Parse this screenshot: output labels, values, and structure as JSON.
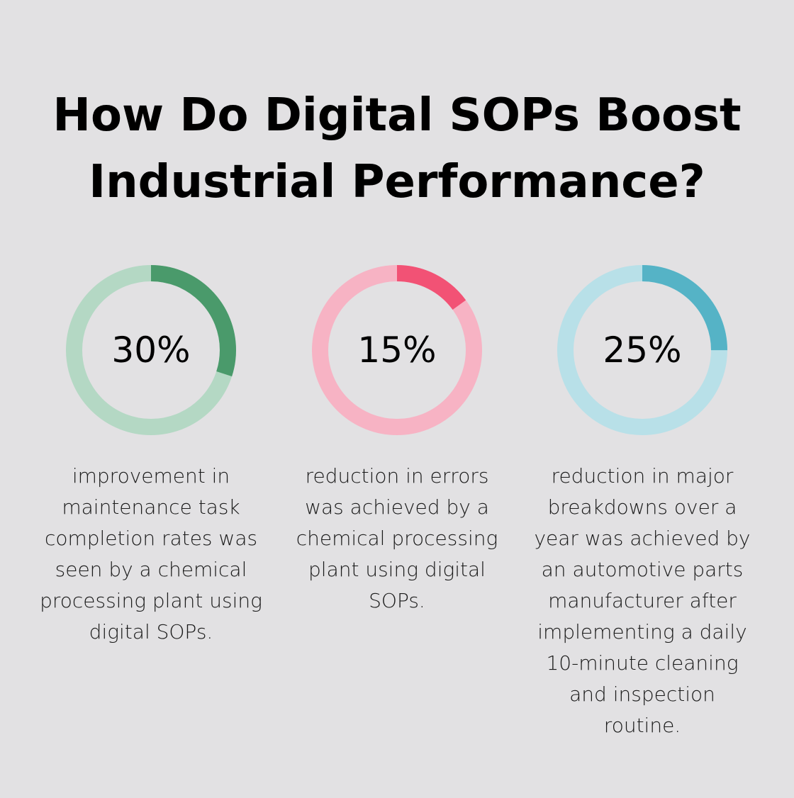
{
  "title": {
    "line1": "How Do Digital SOPs Boost",
    "line2": "Industrial Performance?"
  },
  "chart_data": [
    {
      "type": "donut",
      "value": 30,
      "label": "30%",
      "description": "improvement in maintenance task completion rates was seen by a chemical processing plant using digital SOPs.",
      "color": "#4a9a6b",
      "track_color": "#b4d8c4"
    },
    {
      "type": "donut",
      "value": 15,
      "label": "15%",
      "description": "reduction in errors was achieved by a chemical processing plant using digital SOPs.",
      "color": "#f25275",
      "track_color": "#f7b3c4"
    },
    {
      "type": "donut",
      "value": 25,
      "label": "25%",
      "description": "reduction in major breakdowns over a year was achieved by an automotive parts manufacturer after implementing a daily 10-minute cleaning and inspection routine.",
      "color": "#55b3c6",
      "track_color": "#b8e0e8"
    }
  ]
}
